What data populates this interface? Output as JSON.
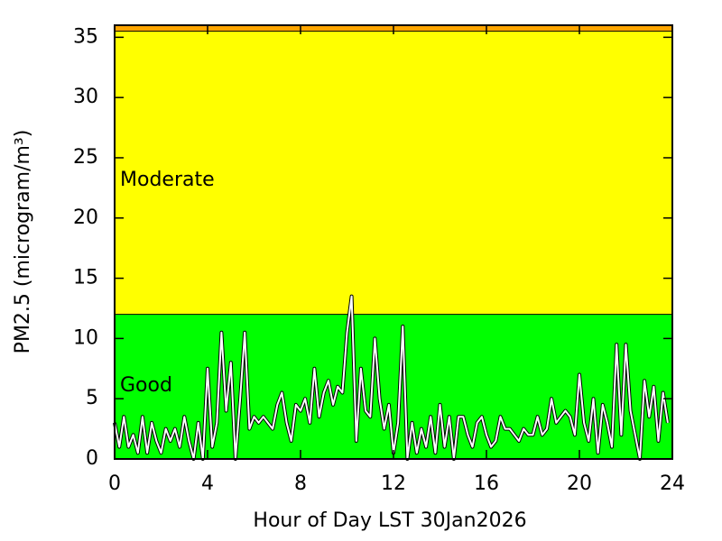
{
  "chart_data": {
    "type": "line",
    "xlabel": "Hour of Day LST 30Jan2026",
    "ylabel": "PM2.5 (microgram/m³)",
    "xlim": [
      0,
      24
    ],
    "xticks": [
      0,
      4,
      8,
      12,
      16,
      20,
      24
    ],
    "ylim": [
      0,
      36
    ],
    "yticks": [
      0,
      5,
      10,
      15,
      20,
      25,
      30,
      35
    ],
    "bands": [
      {
        "name": "Good",
        "from": 0,
        "to": 12,
        "color": "#00ff00"
      },
      {
        "name": "Moderate",
        "from": 12,
        "to": 35.5,
        "color": "#ffff00"
      },
      {
        "from": 35.5,
        "to": 36,
        "color": "#ffa500"
      }
    ],
    "x": [
      0.0,
      0.2,
      0.4,
      0.6,
      0.8,
      1.0,
      1.2,
      1.4,
      1.6,
      1.8,
      2.0,
      2.2,
      2.4,
      2.6,
      2.8,
      3.0,
      3.2,
      3.4,
      3.6,
      3.8,
      4.0,
      4.2,
      4.4,
      4.6,
      4.8,
      5.0,
      5.2,
      5.4,
      5.6,
      5.8,
      6.0,
      6.2,
      6.4,
      6.6,
      6.8,
      7.0,
      7.2,
      7.4,
      7.6,
      7.8,
      8.0,
      8.2,
      8.4,
      8.6,
      8.8,
      9.0,
      9.2,
      9.4,
      9.6,
      9.8,
      10.0,
      10.2,
      10.4,
      10.6,
      10.8,
      11.0,
      11.2,
      11.4,
      11.6,
      11.8,
      12.0,
      12.2,
      12.4,
      12.6,
      12.8,
      13.0,
      13.2,
      13.4,
      13.6,
      13.8,
      14.0,
      14.2,
      14.4,
      14.6,
      14.8,
      15.0,
      15.2,
      15.4,
      15.6,
      15.8,
      16.0,
      16.2,
      16.4,
      16.6,
      16.8,
      17.0,
      17.2,
      17.4,
      17.6,
      17.8,
      18.0,
      18.2,
      18.4,
      18.6,
      18.8,
      19.0,
      19.2,
      19.4,
      19.6,
      19.8,
      20.0,
      20.2,
      20.4,
      20.6,
      20.8,
      21.0,
      21.2,
      21.4,
      21.6,
      21.8,
      22.0,
      22.2,
      22.4,
      22.6,
      22.8,
      23.0,
      23.2,
      23.4,
      23.6,
      23.8
    ],
    "series": [
      {
        "color": "#ffffff",
        "values": [
          3,
          1,
          3.5,
          1,
          2,
          0.5,
          3.5,
          0.5,
          3,
          1.5,
          0.5,
          2.5,
          1.5,
          2.5,
          1,
          3.5,
          1.5,
          0,
          3,
          0,
          7.5,
          1,
          3,
          10.5,
          4,
          8,
          0,
          5,
          10.5,
          2.5,
          3.5,
          3,
          3.5,
          3,
          2.5,
          4.5,
          5.5,
          3,
          1.5,
          4.5,
          4,
          5,
          3,
          7.5,
          3.5,
          5.5,
          6.5,
          4.5,
          6,
          5.5,
          10.5,
          13.5,
          1.5,
          7.5,
          4,
          3.5,
          10,
          5,
          2.5,
          4.5,
          0.5,
          3,
          11,
          0,
          3,
          0.5,
          2.5,
          1,
          3.5,
          0.5,
          4.5,
          1,
          3.5,
          0,
          3.5,
          3.5,
          2,
          1,
          3,
          3.5,
          2,
          1,
          1.5,
          3.5,
          2.5,
          2.5,
          2,
          1.5,
          2.5,
          2,
          2,
          3.5,
          2,
          2.5,
          5,
          3,
          3.5,
          4,
          3.5,
          2,
          7,
          3,
          1.5,
          5,
          0.5,
          4.5,
          3,
          1,
          9.5,
          2,
          9.5,
          4,
          2,
          0,
          6.5,
          3.5,
          6,
          1.5,
          5.5,
          3
        ]
      }
    ]
  }
}
